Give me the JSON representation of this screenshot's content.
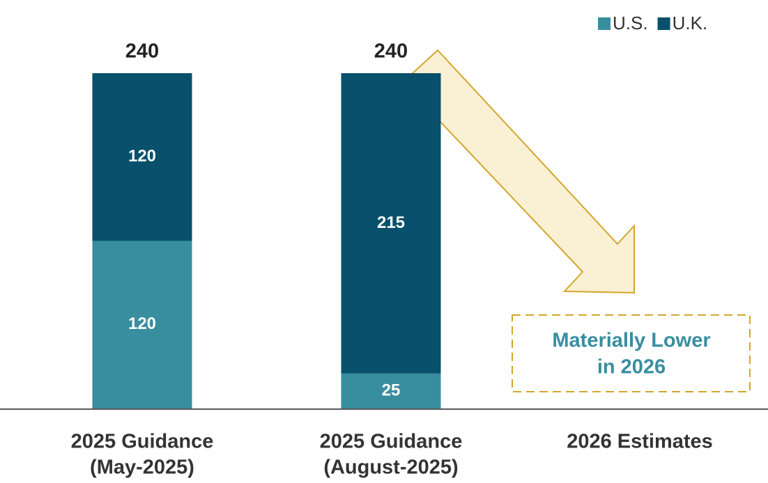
{
  "chart_data": {
    "type": "stacked_bar",
    "categories": [
      [
        "2025 Guidance",
        "(May-2025)"
      ],
      [
        "2025 Guidance",
        "(August-2025)"
      ],
      [
        "2026 Estimates"
      ]
    ],
    "series": [
      {
        "name": "U.S.",
        "color": "#388e9f",
        "values": [
          120,
          25,
          null
        ]
      },
      {
        "name": "U.K.",
        "color": "#08506b",
        "values": [
          120,
          215,
          null
        ]
      }
    ],
    "totals": [
      240,
      240,
      null
    ],
    "ylim": [
      0,
      240
    ],
    "legend": "top-right",
    "annotation": [
      "Materially Lower",
      "in 2026"
    ]
  }
}
